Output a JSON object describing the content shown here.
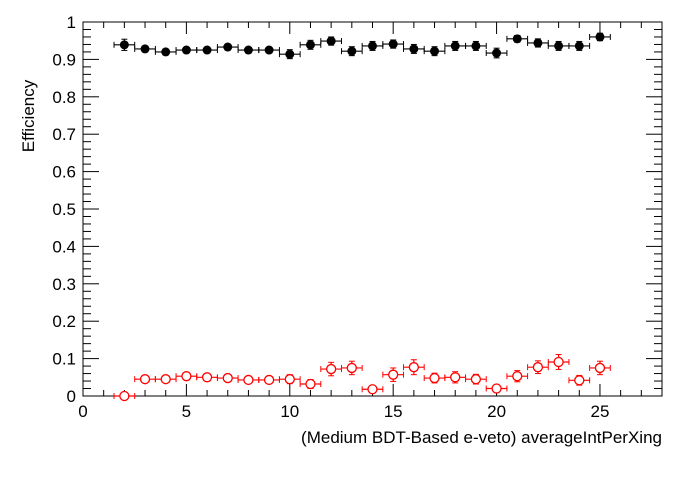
{
  "chart_data": {
    "type": "scatter",
    "title": "",
    "xlabel": "(Medium BDT-Based e-veto) averageIntPerXing",
    "ylabel": "Efficiency",
    "xlim": [
      0,
      28
    ],
    "ylim": [
      0,
      1
    ],
    "x_ticks": [
      "0",
      "5",
      "10",
      "15",
      "20",
      "25"
    ],
    "x_tick_values": [
      0,
      5,
      10,
      15,
      20,
      25
    ],
    "y_ticks": [
      "0",
      "0.1",
      "0.2",
      "0.3",
      "0.4",
      "0.5",
      "0.6",
      "0.7",
      "0.8",
      "0.9",
      "1"
    ],
    "y_tick_values": [
      0,
      0.1,
      0.2,
      0.3,
      0.4,
      0.5,
      0.6,
      0.7,
      0.8,
      0.9,
      1
    ],
    "grid": false,
    "x": [
      2,
      3,
      4,
      5,
      6,
      7,
      8,
      9,
      10,
      11,
      12,
      13,
      14,
      15,
      16,
      17,
      18,
      19,
      20,
      21,
      22,
      23,
      24,
      25
    ],
    "x_err": 0.5,
    "series": [
      {
        "name": "black-filled",
        "color": "#000000",
        "marker": "filled-circle",
        "values": [
          0.939,
          0.928,
          0.92,
          0.925,
          0.925,
          0.933,
          0.925,
          0.925,
          0.914,
          0.939,
          0.949,
          0.922,
          0.936,
          0.941,
          0.928,
          0.922,
          0.936,
          0.936,
          0.917,
          0.955,
          0.944,
          0.936,
          0.936,
          0.96
        ],
        "errors": [
          0.015,
          0.006,
          0.006,
          0.006,
          0.006,
          0.007,
          0.007,
          0.007,
          0.012,
          0.012,
          0.011,
          0.012,
          0.012,
          0.011,
          0.012,
          0.012,
          0.012,
          0.012,
          0.013,
          0.009,
          0.011,
          0.012,
          0.012,
          0.01
        ]
      },
      {
        "name": "red-open",
        "color": "#ff0000",
        "marker": "open-circle",
        "values": [
          0.0,
          0.045,
          0.045,
          0.053,
          0.05,
          0.048,
          0.043,
          0.043,
          0.045,
          0.032,
          0.072,
          0.075,
          0.018,
          0.057,
          0.077,
          0.048,
          0.05,
          0.045,
          0.02,
          0.053,
          0.077,
          0.091,
          0.042,
          0.075
        ],
        "errors": [
          0.004,
          0.006,
          0.006,
          0.007,
          0.007,
          0.007,
          0.007,
          0.007,
          0.012,
          0.012,
          0.018,
          0.018,
          0.01,
          0.018,
          0.02,
          0.013,
          0.015,
          0.013,
          0.01,
          0.015,
          0.017,
          0.02,
          0.013,
          0.018
        ]
      }
    ]
  }
}
